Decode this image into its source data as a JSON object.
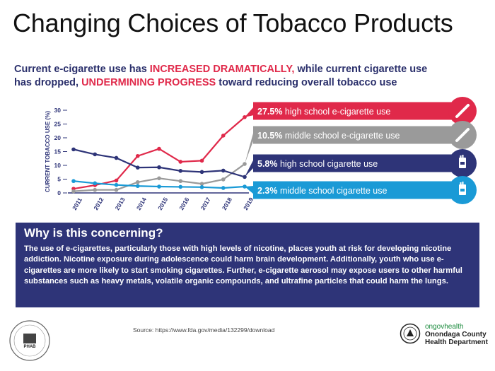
{
  "title": "Changing Choices of Tobacco Products",
  "subtitle": {
    "line1_pre": "Current e-cigarette use has ",
    "line1_em": "INCREASED DRAMATICALLY,",
    "line1_post": " while current cigarette use",
    "line2_pre": "has dropped, ",
    "line2_em": "UNDERMINING PROGRESS",
    "line2_post": " toward reducing overall tobacco use"
  },
  "colors": {
    "hs_ecig": "#e0294a",
    "ms_ecig": "#9a9a9a",
    "hs_cig": "#2e3478",
    "ms_cig": "#1a9ad6",
    "box_bg": "#2e3478",
    "accent_red": "#e0294a"
  },
  "chart_data": {
    "type": "line",
    "ylabel": "CURRENT TOBACCO USE (%)",
    "ylim": [
      0,
      30
    ],
    "yticks": [
      "0",
      "5",
      "10",
      "15",
      "20",
      "25",
      "30"
    ],
    "grid": false,
    "x": [
      "2011",
      "2012",
      "2013",
      "2014",
      "2015",
      "2016",
      "2017",
      "2018",
      "2019"
    ],
    "series": [
      {
        "key": "hs_ecig",
        "values": [
          1.5,
          2.8,
          4.5,
          13.4,
          16.0,
          11.3,
          11.7,
          20.8,
          27.5
        ],
        "label_value": "27.5%",
        "label_text": "high school e-cigarette use",
        "icon": "e-cigarette-icon"
      },
      {
        "key": "ms_ecig",
        "values": [
          0.6,
          1.1,
          1.1,
          3.9,
          5.3,
          4.3,
          3.3,
          4.9,
          10.5
        ],
        "label_value": "10.5%",
        "label_text": "middle school e-cigarette use",
        "icon": "e-cigarette-icon"
      },
      {
        "key": "hs_cig",
        "values": [
          15.8,
          14.0,
          12.7,
          9.2,
          9.3,
          8.0,
          7.6,
          8.1,
          5.8
        ],
        "label_value": "5.8%",
        "label_text": "high school cigarette use",
        "icon": "cigarette-pack-icon"
      },
      {
        "key": "ms_cig",
        "values": [
          4.3,
          3.5,
          2.9,
          2.5,
          2.3,
          2.2,
          2.1,
          1.8,
          2.3
        ],
        "label_value": "2.3%",
        "label_text": "middle school cigarette use",
        "icon": "cigarette-pack-icon"
      }
    ]
  },
  "box": {
    "title": "Why is this concerning?",
    "body": "The use of e-cigarettes, particularly those with high levels of nicotine, places youth at risk for developing nicotine addiction. Nicotine exposure during adolescence could harm brain development. Additionally, youth who use e-cigarettes are more likely to start smoking cigarettes. Further, e-cigarette aerosol may expose users to other harmful substances such as heavy metals, volatile organic compounds, and ultrafine particles that could harm the lungs."
  },
  "footer": {
    "source": "Source: https://www.fda.gov/media/132299/download",
    "phab_logo_text": "PHAB",
    "county_logo": {
      "brand": "ongovhealth",
      "line2": "Onondaga County",
      "line3": "Health Department"
    }
  }
}
